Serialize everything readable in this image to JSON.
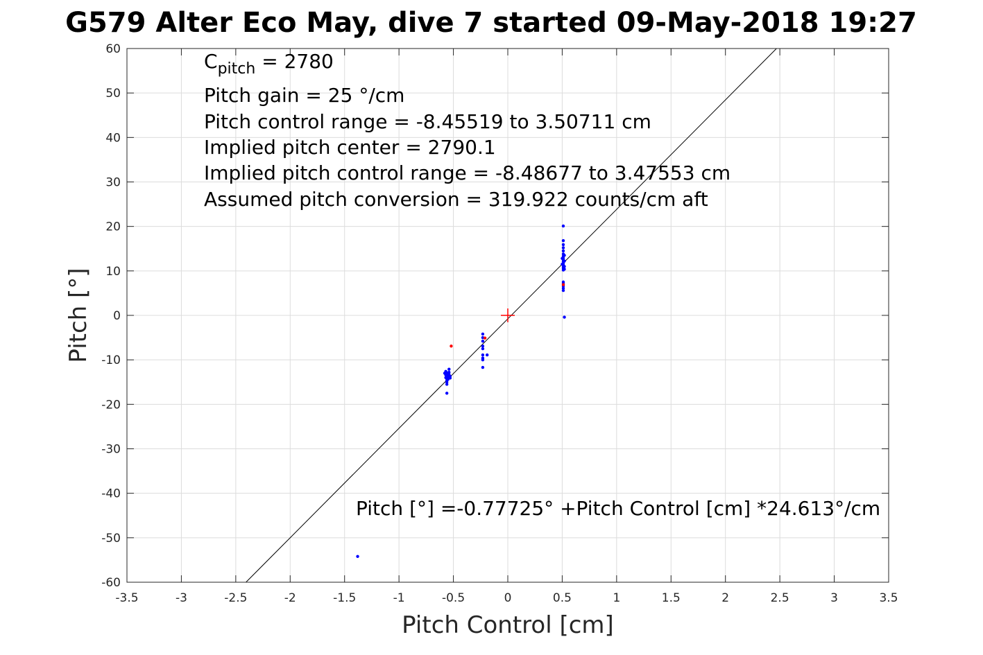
{
  "chart_data": {
    "type": "scatter",
    "title": "G579 Alter Eco May, dive 7 started 09-May-2018 19:27",
    "xlabel": "Pitch Control [cm]",
    "ylabel": "Pitch [°]",
    "xlim": [
      -3.5,
      3.5
    ],
    "ylim": [
      -60,
      60
    ],
    "xticks": [
      -3.5,
      -3,
      -2.5,
      -2,
      -1.5,
      -1,
      -0.5,
      0,
      0.5,
      1,
      1.5,
      2,
      2.5,
      3,
      3.5
    ],
    "xtick_labels": [
      "-3.5",
      "-3",
      "-2.5",
      "-2",
      "-1.5",
      "-1",
      "-0.5",
      "0",
      "0.5",
      "1",
      "1.5",
      "2",
      "2.5",
      "3",
      "3.5"
    ],
    "yticks": [
      -60,
      -50,
      -40,
      -30,
      -20,
      -10,
      0,
      10,
      20,
      30,
      40,
      50,
      60
    ],
    "ytick_labels": [
      "-60",
      "-50",
      "-40",
      "-30",
      "-20",
      "-10",
      "0",
      "10",
      "20",
      "30",
      "40",
      "50",
      "60"
    ],
    "grid": true,
    "annotations_top": {
      "c_pitch_prefix": "C",
      "c_pitch_sub": "pitch",
      "c_pitch_suffix": " = 2780",
      "lines": [
        "Pitch gain = 25 °/cm",
        "Pitch control range = -8.45519 to 3.50711 cm",
        "Implied pitch center = 2790.1",
        "Implied pitch control range = -8.48677 to 3.47553 cm",
        "Assumed pitch conversion = 319.922 counts/cm aft"
      ]
    },
    "fit_equation": "Pitch [°] =-0.77725° +Pitch Control [cm] *24.613°/cm",
    "fit_line": {
      "intercept": -0.77725,
      "slope": 24.613,
      "color": "#000000"
    },
    "center_marker": {
      "x": 0,
      "y": 0,
      "color": "#ff0000"
    },
    "series": [
      {
        "color": "#0000ff",
        "points": [
          [
            0.51,
            20.1
          ],
          [
            0.51,
            16.8
          ],
          [
            0.51,
            15.9
          ],
          [
            0.51,
            15.2
          ],
          [
            0.51,
            14.5
          ],
          [
            0.51,
            13.8
          ],
          [
            0.51,
            13.3
          ],
          [
            0.51,
            12.9
          ],
          [
            0.51,
            12.5
          ],
          [
            0.51,
            12.1
          ],
          [
            0.51,
            11.7
          ],
          [
            0.51,
            11.3
          ],
          [
            0.51,
            10.9
          ],
          [
            0.51,
            10.6
          ],
          [
            0.51,
            10.2
          ],
          [
            0.52,
            13.5
          ],
          [
            0.52,
            12.2
          ],
          [
            0.52,
            11.0
          ],
          [
            0.52,
            10.4
          ],
          [
            0.5,
            12.8
          ],
          [
            0.5,
            11.5
          ],
          [
            0.51,
            7.5
          ],
          [
            0.51,
            7.1
          ],
          [
            0.51,
            6.6
          ],
          [
            0.51,
            6.1
          ],
          [
            0.51,
            5.6
          ],
          [
            0.52,
            -0.4
          ],
          [
            -0.23,
            -4.2
          ],
          [
            -0.23,
            -5.0
          ],
          [
            -0.23,
            -5.8
          ],
          [
            -0.23,
            -6.9
          ],
          [
            -0.23,
            -7.5
          ],
          [
            -0.23,
            -8.9
          ],
          [
            -0.23,
            -9.6
          ],
          [
            -0.23,
            -10.0
          ],
          [
            -0.23,
            -11.7
          ],
          [
            -0.19,
            -8.9
          ],
          [
            -0.57,
            -12.6
          ],
          [
            -0.56,
            -12.9
          ],
          [
            -0.56,
            -13.2
          ],
          [
            -0.55,
            -13.5
          ],
          [
            -0.55,
            -13.9
          ],
          [
            -0.56,
            -14.2
          ],
          [
            -0.56,
            -14.6
          ],
          [
            -0.56,
            -15.0
          ],
          [
            -0.56,
            -15.5
          ],
          [
            -0.54,
            -12.1
          ],
          [
            -0.54,
            -12.8
          ],
          [
            -0.54,
            -13.3
          ],
          [
            -0.53,
            -13.7
          ],
          [
            -0.53,
            -14.1
          ],
          [
            -0.55,
            -14.4
          ],
          [
            -0.57,
            -13.4
          ],
          [
            -0.57,
            -14.0
          ],
          [
            -0.58,
            -13.0
          ],
          [
            -0.56,
            -17.5
          ],
          [
            -1.38,
            -54.2
          ]
        ]
      },
      {
        "color": "#ff0000",
        "points": [
          [
            0.51,
            6.9
          ],
          [
            -0.52,
            -6.9
          ],
          [
            -0.21,
            -5.1
          ]
        ]
      }
    ]
  }
}
